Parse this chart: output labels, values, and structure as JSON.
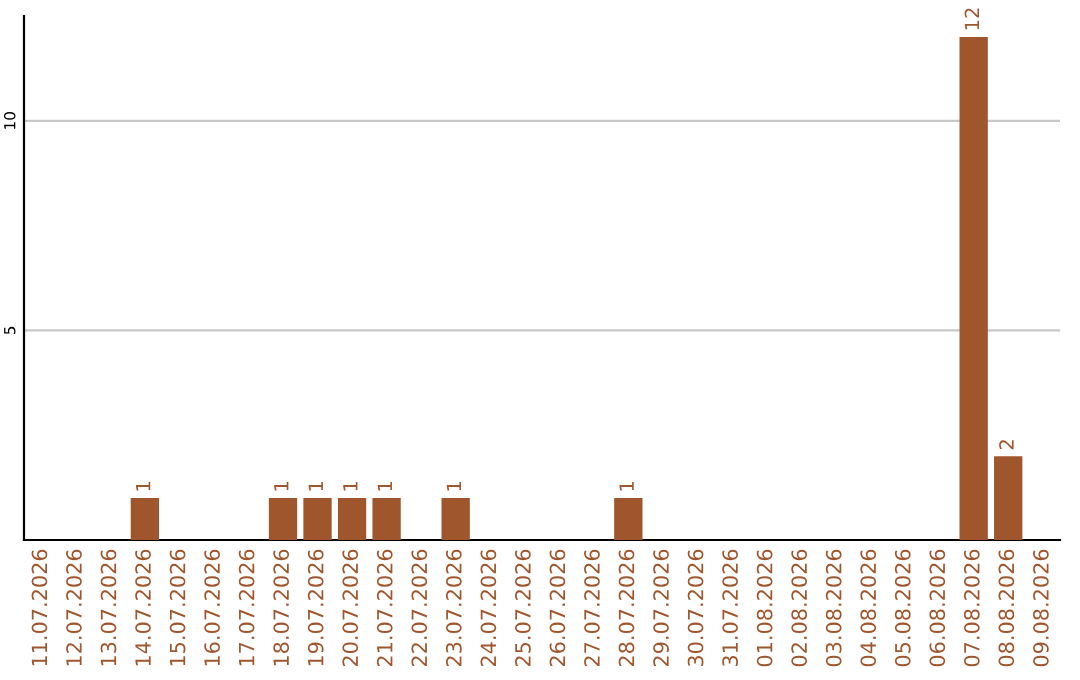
{
  "chart_data": {
    "type": "bar",
    "categories": [
      "11.07.2026",
      "12.07.2026",
      "13.07.2026",
      "14.07.2026",
      "15.07.2026",
      "16.07.2026",
      "17.07.2026",
      "18.07.2026",
      "19.07.2026",
      "20.07.2026",
      "21.07.2026",
      "22.07.2026",
      "23.07.2026",
      "24.07.2026",
      "25.07.2026",
      "26.07.2026",
      "27.07.2026",
      "28.07.2026",
      "29.07.2026",
      "30.07.2026",
      "31.07.2026",
      "01.08.2026",
      "02.08.2026",
      "03.08.2026",
      "04.08.2026",
      "05.08.2026",
      "06.08.2026",
      "07.08.2026",
      "08.08.2026",
      "09.08.2026"
    ],
    "values": [
      0,
      0,
      0,
      1,
      0,
      0,
      0,
      1,
      1,
      1,
      1,
      0,
      1,
      0,
      0,
      0,
      0,
      1,
      0,
      0,
      0,
      0,
      0,
      0,
      0,
      0,
      0,
      12,
      2,
      0
    ],
    "value_labels": [
      null,
      null,
      null,
      "1",
      null,
      null,
      null,
      "1",
      "1",
      "1",
      "1",
      null,
      "1",
      null,
      null,
      null,
      null,
      "1",
      null,
      null,
      null,
      null,
      null,
      null,
      null,
      null,
      null,
      "12",
      "2",
      null
    ],
    "color": "#a0562c",
    "ylim": [
      0,
      12.5
    ],
    "yticks": [
      5,
      10
    ],
    "grid": "y",
    "legend": false
  }
}
